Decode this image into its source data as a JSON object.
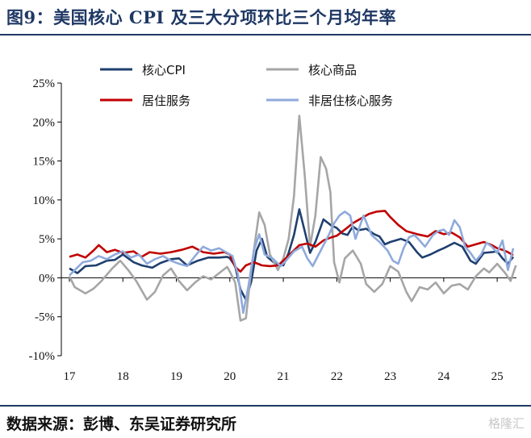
{
  "title": "图9：美国核心 CPI 及三大分项环比三个月均年率",
  "source": "数据来源：彭博、东吴证券研究所",
  "watermark": "格隆汇",
  "chart_data": {
    "type": "line",
    "ylim": [
      -10,
      25
    ],
    "yticks": [
      "-10%",
      "-5%",
      "0%",
      "5%",
      "10%",
      "15%",
      "20%",
      "25%"
    ],
    "ytick_values": [
      -10,
      -5,
      0,
      5,
      10,
      15,
      20,
      25
    ],
    "xticks": [
      "17",
      "18",
      "19",
      "20",
      "21",
      "22",
      "23",
      "24",
      "25"
    ],
    "x_start_year": 2017,
    "x_end_year": 2025.3,
    "grid": false,
    "legend_position": "top",
    "series": [
      {
        "name": "核心CPI",
        "color": "#1f3f6e",
        "points": [
          [
            2017.0,
            1.2
          ],
          [
            2017.15,
            0.6
          ],
          [
            2017.3,
            1.5
          ],
          [
            2017.5,
            1.6
          ],
          [
            2017.7,
            2.2
          ],
          [
            2017.85,
            2.3
          ],
          [
            2018.0,
            3.0
          ],
          [
            2018.2,
            2.0
          ],
          [
            2018.35,
            1.6
          ],
          [
            2018.55,
            1.3
          ],
          [
            2018.7,
            1.9
          ],
          [
            2018.9,
            2.4
          ],
          [
            2019.05,
            2.5
          ],
          [
            2019.2,
            1.6
          ],
          [
            2019.4,
            2.2
          ],
          [
            2019.6,
            2.6
          ],
          [
            2019.8,
            2.6
          ],
          [
            2019.95,
            2.7
          ],
          [
            2020.0,
            2.5
          ],
          [
            2020.1,
            1.5
          ],
          [
            2020.2,
            -1.5
          ],
          [
            2020.3,
            -2.8
          ],
          [
            2020.4,
            -0.5
          ],
          [
            2020.5,
            3.5
          ],
          [
            2020.6,
            5.0
          ],
          [
            2020.7,
            2.7
          ],
          [
            2020.85,
            1.8
          ],
          [
            2021.0,
            1.6
          ],
          [
            2021.1,
            3.2
          ],
          [
            2021.2,
            5.5
          ],
          [
            2021.3,
            8.8
          ],
          [
            2021.4,
            6.0
          ],
          [
            2021.5,
            3.2
          ],
          [
            2021.6,
            4.6
          ],
          [
            2021.75,
            7.5
          ],
          [
            2021.9,
            6.7
          ],
          [
            2022.0,
            6.4
          ],
          [
            2022.1,
            5.7
          ],
          [
            2022.2,
            5.5
          ],
          [
            2022.3,
            6.6
          ],
          [
            2022.4,
            6.1
          ],
          [
            2022.55,
            6.3
          ],
          [
            2022.7,
            5.6
          ],
          [
            2022.8,
            5.3
          ],
          [
            2022.9,
            4.3
          ],
          [
            2023.0,
            4.6
          ],
          [
            2023.2,
            5.0
          ],
          [
            2023.35,
            4.6
          ],
          [
            2023.5,
            3.3
          ],
          [
            2023.6,
            2.6
          ],
          [
            2023.75,
            3.0
          ],
          [
            2023.9,
            3.5
          ],
          [
            2024.0,
            3.8
          ],
          [
            2024.2,
            4.5
          ],
          [
            2024.35,
            4.0
          ],
          [
            2024.5,
            2.2
          ],
          [
            2024.6,
            1.8
          ],
          [
            2024.75,
            3.2
          ],
          [
            2024.9,
            3.3
          ],
          [
            2025.0,
            3.4
          ],
          [
            2025.1,
            2.5
          ],
          [
            2025.2,
            1.8
          ],
          [
            2025.3,
            2.7
          ]
        ]
      },
      {
        "name": "核心商品",
        "color": "#a6a6a6",
        "points": [
          [
            2017.0,
            0.2
          ],
          [
            2017.1,
            -1.2
          ],
          [
            2017.3,
            -2.0
          ],
          [
            2017.45,
            -1.4
          ],
          [
            2017.6,
            -0.4
          ],
          [
            2017.8,
            1.2
          ],
          [
            2017.95,
            2.2
          ],
          [
            2018.1,
            1.0
          ],
          [
            2018.25,
            -0.4
          ],
          [
            2018.45,
            -2.8
          ],
          [
            2018.6,
            -1.8
          ],
          [
            2018.75,
            0.3
          ],
          [
            2018.9,
            1.2
          ],
          [
            2019.05,
            -0.4
          ],
          [
            2019.2,
            -1.6
          ],
          [
            2019.35,
            -0.6
          ],
          [
            2019.5,
            0.2
          ],
          [
            2019.65,
            -0.2
          ],
          [
            2019.8,
            0.6
          ],
          [
            2019.95,
            1.4
          ],
          [
            2020.0,
            0.8
          ],
          [
            2020.1,
            -0.6
          ],
          [
            2020.2,
            -5.5
          ],
          [
            2020.3,
            -5.2
          ],
          [
            2020.4,
            1.0
          ],
          [
            2020.5,
            6.0
          ],
          [
            2020.55,
            8.4
          ],
          [
            2020.65,
            6.8
          ],
          [
            2020.75,
            3.0
          ],
          [
            2020.9,
            1.0
          ],
          [
            2021.0,
            2.5
          ],
          [
            2021.1,
            5.0
          ],
          [
            2021.2,
            10.5
          ],
          [
            2021.3,
            20.8
          ],
          [
            2021.4,
            13.2
          ],
          [
            2021.5,
            4.0
          ],
          [
            2021.6,
            8.0
          ],
          [
            2021.7,
            15.5
          ],
          [
            2021.8,
            14.0
          ],
          [
            2021.88,
            11.0
          ],
          [
            2021.95,
            2.0
          ],
          [
            2022.05,
            -0.6
          ],
          [
            2022.15,
            2.5
          ],
          [
            2022.3,
            3.5
          ],
          [
            2022.45,
            1.8
          ],
          [
            2022.55,
            -0.8
          ],
          [
            2022.7,
            -1.8
          ],
          [
            2022.85,
            -0.8
          ],
          [
            2023.0,
            1.5
          ],
          [
            2023.15,
            0.8
          ],
          [
            2023.3,
            -1.8
          ],
          [
            2023.4,
            -3.0
          ],
          [
            2023.55,
            -1.2
          ],
          [
            2023.7,
            -1.5
          ],
          [
            2023.85,
            -0.6
          ],
          [
            2024.0,
            -2.0
          ],
          [
            2024.15,
            -1.0
          ],
          [
            2024.3,
            -0.8
          ],
          [
            2024.45,
            -1.5
          ],
          [
            2024.6,
            0.2
          ],
          [
            2024.75,
            1.2
          ],
          [
            2024.85,
            0.7
          ],
          [
            2025.0,
            1.8
          ],
          [
            2025.15,
            0.6
          ],
          [
            2025.25,
            -0.4
          ],
          [
            2025.35,
            1.6
          ]
        ]
      },
      {
        "name": "居住服务",
        "color": "#c00000",
        "points": [
          [
            2017.0,
            2.7
          ],
          [
            2017.15,
            3.0
          ],
          [
            2017.3,
            2.6
          ],
          [
            2017.45,
            3.5
          ],
          [
            2017.55,
            4.2
          ],
          [
            2017.7,
            3.3
          ],
          [
            2017.85,
            3.6
          ],
          [
            2018.0,
            3.2
          ],
          [
            2018.2,
            3.4
          ],
          [
            2018.35,
            2.7
          ],
          [
            2018.5,
            3.3
          ],
          [
            2018.7,
            3.1
          ],
          [
            2018.9,
            3.3
          ],
          [
            2019.1,
            3.6
          ],
          [
            2019.3,
            4.0
          ],
          [
            2019.5,
            3.3
          ],
          [
            2019.7,
            3.1
          ],
          [
            2019.9,
            3.3
          ],
          [
            2020.0,
            3.0
          ],
          [
            2020.1,
            1.4
          ],
          [
            2020.2,
            0.8
          ],
          [
            2020.3,
            1.6
          ],
          [
            2020.45,
            2.0
          ],
          [
            2020.6,
            1.6
          ],
          [
            2020.75,
            1.5
          ],
          [
            2020.9,
            1.6
          ],
          [
            2021.0,
            2.2
          ],
          [
            2021.15,
            3.2
          ],
          [
            2021.3,
            4.2
          ],
          [
            2021.45,
            4.4
          ],
          [
            2021.6,
            4.0
          ],
          [
            2021.75,
            4.8
          ],
          [
            2021.9,
            5.2
          ],
          [
            2022.0,
            5.4
          ],
          [
            2022.15,
            6.2
          ],
          [
            2022.3,
            7.0
          ],
          [
            2022.45,
            7.6
          ],
          [
            2022.6,
            8.2
          ],
          [
            2022.75,
            8.5
          ],
          [
            2022.9,
            8.6
          ],
          [
            2023.0,
            7.8
          ],
          [
            2023.15,
            6.8
          ],
          [
            2023.3,
            6.0
          ],
          [
            2023.5,
            5.6
          ],
          [
            2023.7,
            5.3
          ],
          [
            2023.85,
            6.0
          ],
          [
            2024.0,
            5.6
          ],
          [
            2024.15,
            5.8
          ],
          [
            2024.3,
            5.2
          ],
          [
            2024.45,
            4.0
          ],
          [
            2024.6,
            4.3
          ],
          [
            2024.75,
            4.6
          ],
          [
            2024.9,
            4.2
          ],
          [
            2025.0,
            3.8
          ],
          [
            2025.1,
            3.6
          ],
          [
            2025.2,
            3.3
          ],
          [
            2025.3,
            2.9
          ]
        ]
      },
      {
        "name": "非居住核心服务",
        "color": "#8faadc",
        "points": [
          [
            2017.0,
            0.3
          ],
          [
            2017.1,
            1.0
          ],
          [
            2017.25,
            2.0
          ],
          [
            2017.4,
            2.2
          ],
          [
            2017.55,
            2.8
          ],
          [
            2017.7,
            2.4
          ],
          [
            2017.85,
            3.0
          ],
          [
            2018.0,
            3.4
          ],
          [
            2018.15,
            2.6
          ],
          [
            2018.3,
            3.0
          ],
          [
            2018.45,
            1.8
          ],
          [
            2018.6,
            2.4
          ],
          [
            2018.75,
            2.8
          ],
          [
            2018.9,
            2.2
          ],
          [
            2019.05,
            1.8
          ],
          [
            2019.2,
            1.5
          ],
          [
            2019.35,
            2.8
          ],
          [
            2019.5,
            4.0
          ],
          [
            2019.65,
            3.5
          ],
          [
            2019.8,
            3.8
          ],
          [
            2019.95,
            3.2
          ],
          [
            2020.05,
            2.8
          ],
          [
            2020.15,
            0.5
          ],
          [
            2020.25,
            -4.5
          ],
          [
            2020.35,
            -1.0
          ],
          [
            2020.45,
            3.5
          ],
          [
            2020.55,
            5.6
          ],
          [
            2020.65,
            3.0
          ],
          [
            2020.8,
            2.5
          ],
          [
            2020.95,
            1.5
          ],
          [
            2021.05,
            2.2
          ],
          [
            2021.2,
            3.4
          ],
          [
            2021.35,
            4.0
          ],
          [
            2021.45,
            2.5
          ],
          [
            2021.55,
            1.5
          ],
          [
            2021.7,
            3.5
          ],
          [
            2021.85,
            5.5
          ],
          [
            2021.95,
            7.0
          ],
          [
            2022.05,
            8.0
          ],
          [
            2022.15,
            8.5
          ],
          [
            2022.25,
            8.0
          ],
          [
            2022.35,
            5.0
          ],
          [
            2022.5,
            8.0
          ],
          [
            2022.65,
            5.5
          ],
          [
            2022.8,
            4.6
          ],
          [
            2022.95,
            3.5
          ],
          [
            2023.05,
            2.2
          ],
          [
            2023.15,
            1.8
          ],
          [
            2023.25,
            3.8
          ],
          [
            2023.35,
            5.2
          ],
          [
            2023.45,
            5.5
          ],
          [
            2023.55,
            4.8
          ],
          [
            2023.65,
            4.0
          ],
          [
            2023.8,
            5.5
          ],
          [
            2023.9,
            6.0
          ],
          [
            2024.0,
            6.2
          ],
          [
            2024.1,
            5.5
          ],
          [
            2024.2,
            7.4
          ],
          [
            2024.3,
            6.5
          ],
          [
            2024.4,
            4.0
          ],
          [
            2024.5,
            3.2
          ],
          [
            2024.6,
            2.2
          ],
          [
            2024.7,
            3.0
          ],
          [
            2024.8,
            4.5
          ],
          [
            2024.9,
            4.0
          ],
          [
            2025.0,
            3.2
          ],
          [
            2025.1,
            4.8
          ],
          [
            2025.2,
            1.0
          ],
          [
            2025.3,
            3.8
          ]
        ]
      }
    ]
  }
}
